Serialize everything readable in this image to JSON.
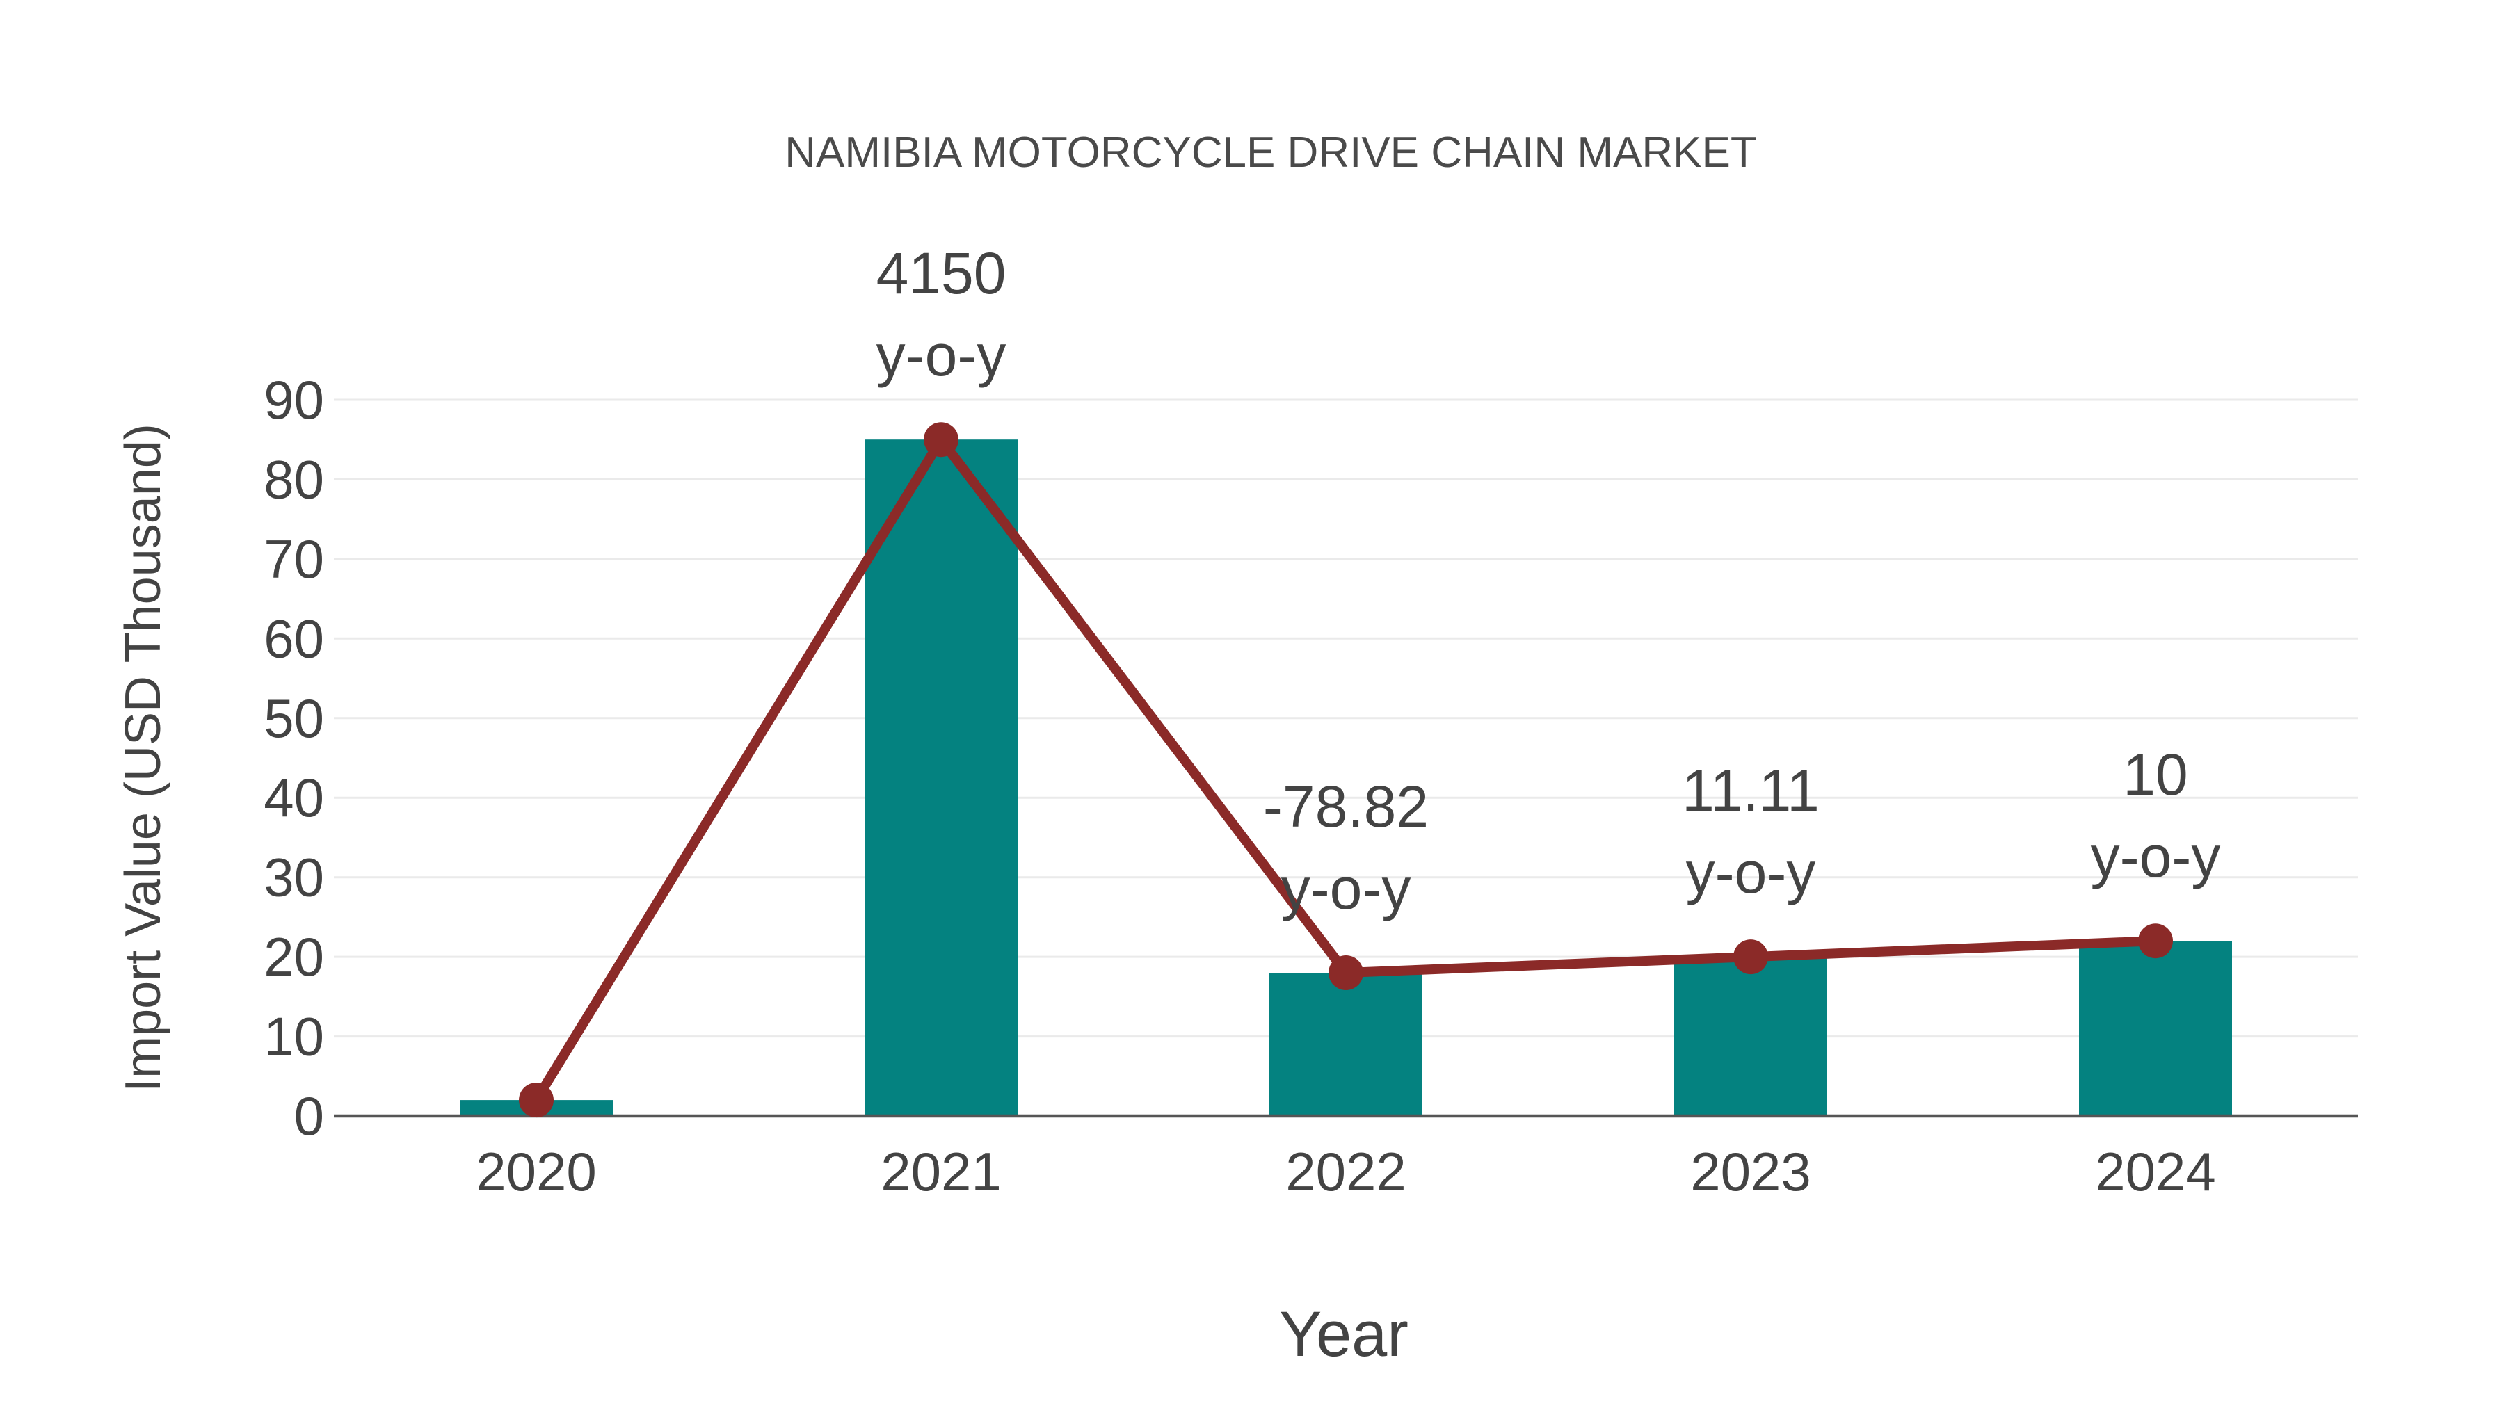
{
  "title": "NAMIBIA MOTORCYCLE DRIVE CHAIN MARKET",
  "chart_data": {
    "type": "bar",
    "categories": [
      "2020",
      "2021",
      "2022",
      "2023",
      "2024"
    ],
    "series": [
      {
        "name": "import-value-bars",
        "type": "bar",
        "values": [
          2,
          85,
          18,
          20,
          22
        ]
      },
      {
        "name": "import-value-line",
        "type": "line",
        "values": [
          2,
          85,
          18,
          20,
          22
        ]
      }
    ],
    "annotations": [
      {
        "x": "2021",
        "lines": [
          "4150",
          "y-o-y"
        ]
      },
      {
        "x": "2022",
        "lines": [
          "-78.82",
          "y-o-y"
        ]
      },
      {
        "x": "2023",
        "lines": [
          "11.11",
          "y-o-y"
        ]
      },
      {
        "x": "2024",
        "lines": [
          "10",
          "y-o-y"
        ]
      }
    ],
    "title": "NAMIBIA MOTORCYCLE DRIVE CHAIN MARKET",
    "xlabel": "Year",
    "ylabel": "Import Value (USD Thousand)",
    "yticks": [
      0,
      10,
      20,
      30,
      40,
      50,
      60,
      70,
      80,
      90
    ],
    "ylim": [
      0,
      94.8
    ],
    "grid": true,
    "legend": "none",
    "colors": {
      "bar": "#048280",
      "line": "#8b2a28",
      "text": "#434343",
      "title_text": "#4a4a4a",
      "grid": "#eaeaea",
      "axis": "#555555"
    }
  }
}
